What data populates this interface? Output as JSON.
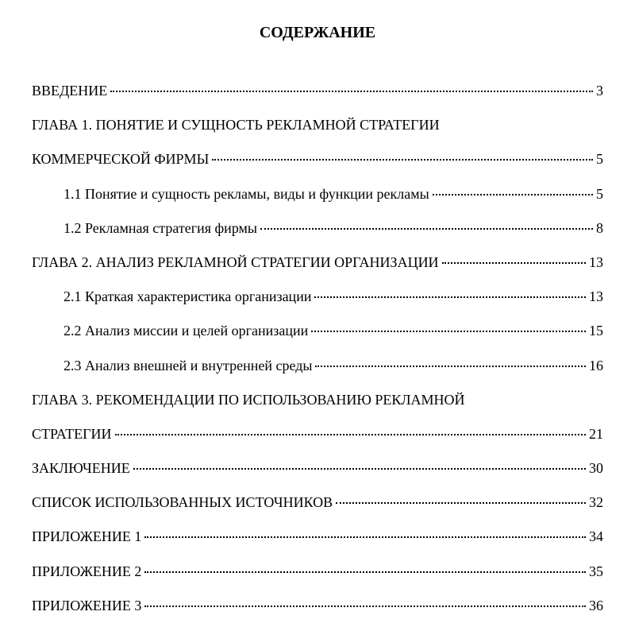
{
  "title": "СОДЕРЖАНИЕ",
  "entries": [
    {
      "label": "ВВЕДЕНИЕ",
      "page": "3",
      "indent": false,
      "multiline": false
    },
    {
      "label1": "ГЛАВА 1. ПОНЯТИЕ И СУЩНОСТЬ РЕКЛАМНОЙ СТРАТЕГИИ",
      "label2": "КОММЕРЧЕСКОЙ ФИРМЫ",
      "page": "5",
      "indent": false,
      "multiline": true
    },
    {
      "label": "1.1 Понятие и сущность рекламы, виды и функции рекламы",
      "page": "5",
      "indent": true,
      "multiline": false
    },
    {
      "label": "1.2 Рекламная стратегия фирмы",
      "page": "8",
      "indent": true,
      "multiline": false
    },
    {
      "label": "ГЛАВА 2. АНАЛИЗ РЕКЛАМНОЙ СТРАТЕГИИ ОРГАНИЗАЦИИ",
      "page": "13",
      "indent": false,
      "multiline": false
    },
    {
      "label": "2.1 Краткая характеристика организации",
      "page": "13",
      "indent": true,
      "multiline": false
    },
    {
      "label": "2.2 Анализ миссии и целей организации",
      "page": "15",
      "indent": true,
      "multiline": false
    },
    {
      "label": "2.3 Анализ внешней и внутренней среды",
      "page": "16",
      "indent": true,
      "multiline": false
    },
    {
      "label1": "ГЛАВА 3. РЕКОМЕНДАЦИИ ПО ИСПОЛЬЗОВАНИЮ РЕКЛАМНОЙ",
      "label2": "СТРАТЕГИИ",
      "page": "21",
      "indent": false,
      "multiline": true
    },
    {
      "label": "ЗАКЛЮЧЕНИЕ",
      "page": "30",
      "indent": false,
      "multiline": false
    },
    {
      "label": "СПИСОК ИСПОЛЬЗОВАННЫХ ИСТОЧНИКОВ",
      "page": "32",
      "indent": false,
      "multiline": false
    },
    {
      "label": "ПРИЛОЖЕНИЕ 1",
      "page": "34",
      "indent": false,
      "multiline": false
    },
    {
      "label": "ПРИЛОЖЕНИЕ 2",
      "page": "35",
      "indent": false,
      "multiline": false
    },
    {
      "label": "ПРИЛОЖЕНИЕ 3",
      "page": "36",
      "indent": false,
      "multiline": false
    }
  ]
}
